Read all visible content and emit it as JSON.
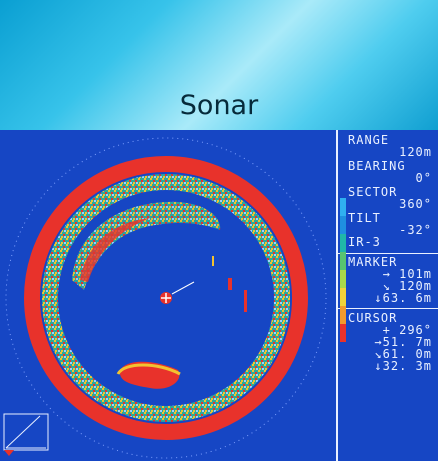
{
  "page": {
    "title": "Sonar"
  },
  "panel": {
    "range_label": "RANGE",
    "range_value": "120m",
    "bearing_label": "BEARING",
    "bearing_value": "0°",
    "sector_label": "SECTOR",
    "sector_value": "360°",
    "tilt_label": "TILT",
    "tilt_value": "-32°",
    "ir_label": "IR-3",
    "marker_label": "MARKER",
    "marker_values": [
      "→ 101m",
      "↘ 120m",
      "↓63. 6m"
    ],
    "cursor_label": "CURSOR",
    "cursor_values": [
      "+ 296°",
      "→51. 7m",
      "↘61. 0m",
      "↓32. 3m"
    ]
  },
  "colors": {
    "background": "#1646c4",
    "echo_strong": "#e8322b",
    "echo_mid": "#f2c230",
    "echo_weak": "#26a6a0",
    "text": "#e9f0ff",
    "scale": [
      "#2fb0f0",
      "#1f8fe0",
      "#20b7a8",
      "#58c470",
      "#a9d84a",
      "#f0d23a",
      "#f29a2c",
      "#e8322b"
    ]
  }
}
